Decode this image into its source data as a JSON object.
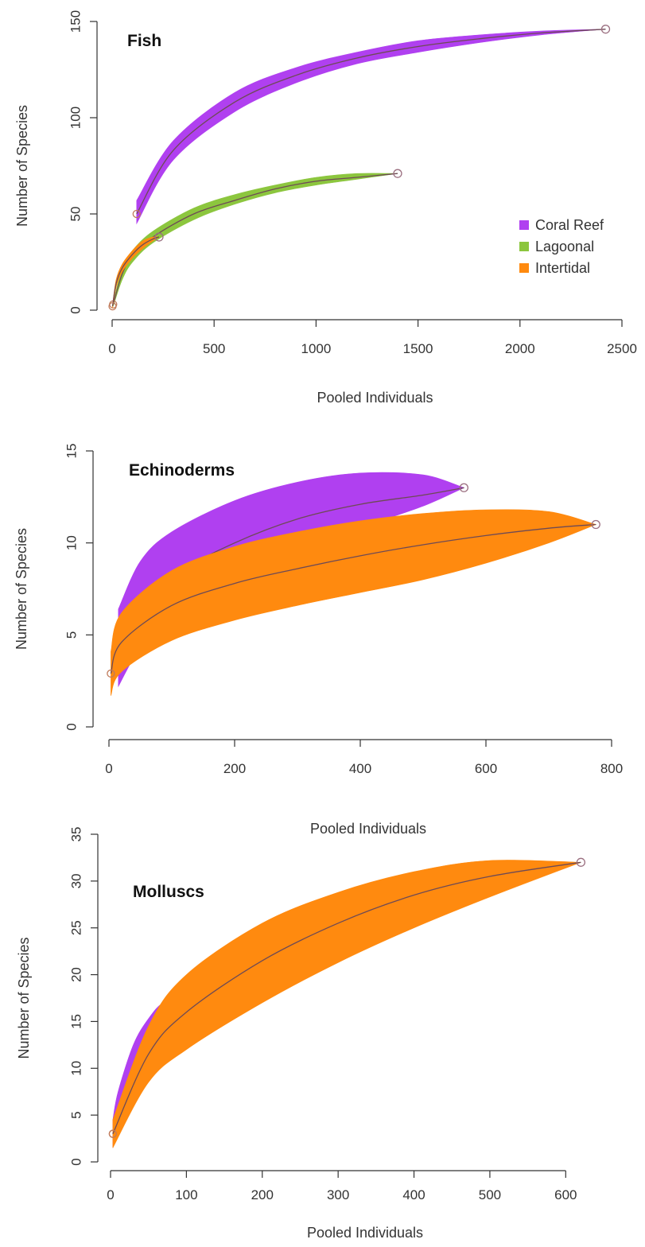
{
  "chart_data": [
    {
      "type": "area",
      "title": "Fish",
      "xlabel": "Pooled Individuals",
      "ylabel": "Number of Species",
      "xlim": [
        0,
        2500
      ],
      "ylim": [
        0,
        150
      ],
      "xticks": [
        0,
        500,
        1000,
        1500,
        2000,
        2500
      ],
      "yticks": [
        0,
        50,
        100,
        150
      ],
      "legend": {
        "placement": "right",
        "entries": [
          {
            "label": "Coral Reef",
            "color": "#b040f0"
          },
          {
            "label": "Lagoonal",
            "color": "#8cc63e"
          },
          {
            "label": "Intertidal",
            "color": "#ff8a0f"
          }
        ]
      },
      "series": [
        {
          "name": "Coral Reef",
          "color": "#b040f0",
          "x": [
            120,
            300,
            600,
            900,
            1200,
            1500,
            1800,
            2100,
            2420
          ],
          "y": [
            50,
            83,
            108,
            122,
            131,
            137,
            141,
            144,
            146
          ],
          "lower": [
            45,
            78,
            103,
            118,
            128,
            134,
            139,
            143,
            146
          ],
          "upper": [
            57,
            88,
            113,
            126,
            134,
            140,
            143,
            145,
            146
          ]
        },
        {
          "name": "Lagoonal",
          "color": "#8cc63e",
          "x": [
            5,
            50,
            100,
            200,
            400,
            600,
            800,
            1000,
            1200,
            1400
          ],
          "y": [
            3,
            19,
            28,
            38,
            50,
            57,
            63,
            67,
            69,
            71
          ],
          "lower": [
            2,
            16,
            25,
            35,
            47,
            55,
            61,
            65,
            68,
            71
          ],
          "upper": [
            4,
            22,
            31,
            41,
            53,
            60,
            65,
            69,
            71,
            71
          ]
        },
        {
          "name": "Intertidal",
          "color": "#ff8a0f",
          "x": [
            2,
            20,
            50,
            100,
            150,
            200,
            230
          ],
          "y": [
            2,
            14,
            22,
            29,
            34,
            37,
            38
          ],
          "lower": [
            1,
            12,
            20,
            27,
            32,
            36,
            38
          ],
          "upper": [
            3,
            16,
            24,
            31,
            36,
            38,
            38
          ]
        }
      ]
    },
    {
      "type": "area",
      "title": "Echinoderms",
      "xlabel": "Pooled Individuals",
      "ylabel": "Number of Species",
      "xlim": [
        0,
        800
      ],
      "ylim": [
        0,
        15
      ],
      "xticks": [
        0,
        200,
        400,
        600,
        800
      ],
      "yticks": [
        0,
        5,
        10,
        15
      ],
      "series": [
        {
          "name": "Coral Reef",
          "color": "#b040f0",
          "x": [
            15,
            50,
            100,
            200,
            300,
            400,
            500,
            565
          ],
          "y": [
            4.3,
            6.5,
            8.2,
            10.0,
            11.3,
            12.1,
            12.6,
            13.0
          ],
          "lower": [
            2.2,
            4.3,
            5.8,
            7.8,
            9.3,
            10.8,
            12.0,
            13.0
          ],
          "upper": [
            6.4,
            9.0,
            10.6,
            12.3,
            13.3,
            13.8,
            13.7,
            13.0
          ]
        },
        {
          "name": "Intertidal",
          "color": "#ff8a0f",
          "x": [
            3,
            20,
            100,
            200,
            300,
            400,
            500,
            600,
            700,
            775
          ],
          "y": [
            2.9,
            4.6,
            6.6,
            7.8,
            8.6,
            9.3,
            9.9,
            10.4,
            10.8,
            11.0
          ],
          "lower": [
            1.7,
            3.0,
            4.7,
            5.8,
            6.6,
            7.3,
            8.0,
            8.9,
            10.0,
            11.0
          ],
          "upper": [
            4.1,
            6.2,
            8.5,
            9.8,
            10.6,
            11.2,
            11.6,
            11.8,
            11.7,
            11.0
          ]
        }
      ]
    },
    {
      "type": "area",
      "title": "Molluscs",
      "xlabel": "Pooled Individuals",
      "ylabel": "Number of Species",
      "xlim": [
        0,
        650
      ],
      "ylim": [
        0,
        35
      ],
      "xticks": [
        0,
        100,
        200,
        300,
        400,
        500,
        600
      ],
      "yticks": [
        0,
        5,
        10,
        15,
        20,
        25,
        30,
        35
      ],
      "series": [
        {
          "name": "Coral Reef",
          "color": "#b040f0",
          "x": [
            3,
            10,
            30,
            50,
            70,
            95
          ],
          "y": [
            3.0,
            5.5,
            10.0,
            13.0,
            15.2,
            17.0
          ],
          "lower": [
            1.5,
            3.5,
            7.5,
            10.8,
            13.5,
            17.0
          ],
          "upper": [
            4.5,
            7.5,
            12.5,
            15.3,
            17.0,
            17.0
          ]
        },
        {
          "name": "Intertidal",
          "color": "#ff8a0f",
          "x": [
            3,
            50,
            100,
            200,
            300,
            400,
            500,
            620
          ],
          "y": [
            3.0,
            11.5,
            16.0,
            21.5,
            25.5,
            28.5,
            30.5,
            32.0
          ],
          "lower": [
            1.5,
            8.5,
            12.0,
            17.0,
            21.3,
            25.0,
            28.3,
            32.0
          ],
          "upper": [
            4.5,
            14.5,
            20.0,
            25.5,
            28.8,
            31.0,
            32.2,
            32.0
          ]
        }
      ]
    }
  ]
}
